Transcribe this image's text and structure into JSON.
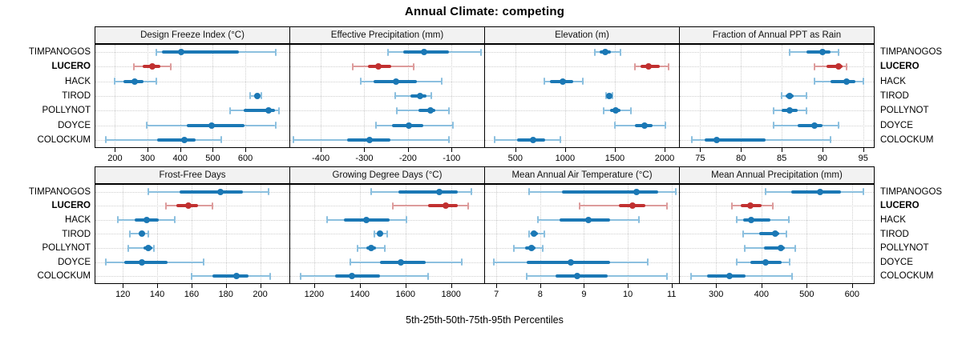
{
  "title": "Annual Climate: competing",
  "xlabel": "5th-25th-50th-75th-95th Percentiles",
  "sites": [
    "TIMPANOGOS",
    "LUCERO",
    "HACK",
    "TIROD",
    "POLLYNOT",
    "DOYCE",
    "COLOCKUM"
  ],
  "highlight_site": "LUCERO",
  "colors": {
    "series": "#1b78b5",
    "series_light": "#8cc0df",
    "highlight": "#c13030",
    "highlight_light": "#dd9c9c",
    "grid": "#cfcfcf",
    "header_bg": "#f2f2f2",
    "border": "#000000"
  },
  "chart_data": [
    {
      "type": "dotplot-interval",
      "title": "Design Freeze Index (°C)",
      "xlim": [
        140,
        735
      ],
      "ticks": [
        200,
        300,
        400,
        500,
        600
      ],
      "percentiles": [
        "5th",
        "25th",
        "50th",
        "75th",
        "95th"
      ],
      "series": [
        {
          "site": "TIMPANOGOS",
          "values": [
            328,
            344,
            402,
            580,
            692
          ]
        },
        {
          "site": "LUCERO",
          "values": [
            258,
            284,
            315,
            340,
            372
          ]
        },
        {
          "site": "HACK",
          "values": [
            200,
            225,
            260,
            287,
            328
          ]
        },
        {
          "site": "TIROD",
          "values": [
            615,
            628,
            636,
            643,
            650
          ]
        },
        {
          "site": "POLLYNOT",
          "values": [
            552,
            594,
            672,
            692,
            704
          ]
        },
        {
          "site": "DOYCE",
          "values": [
            297,
            420,
            497,
            597,
            692
          ]
        },
        {
          "site": "COLOCKUM",
          "values": [
            172,
            330,
            412,
            447,
            525
          ]
        }
      ]
    },
    {
      "type": "dotplot-interval",
      "title": "Effective Precipitation (mm)",
      "xlim": [
        -470,
        -25
      ],
      "ticks": [
        -400,
        -300,
        -200,
        -100
      ],
      "percentiles": [
        "5th",
        "25th",
        "50th",
        "75th",
        "95th"
      ],
      "series": [
        {
          "site": "TIMPANOGOS",
          "values": [
            -245,
            -210,
            -162,
            -105,
            -32
          ]
        },
        {
          "site": "LUCERO",
          "values": [
            -327,
            -292,
            -268,
            -238,
            -186
          ]
        },
        {
          "site": "HACK",
          "values": [
            -308,
            -278,
            -228,
            -180,
            -122
          ]
        },
        {
          "site": "TIROD",
          "values": [
            -230,
            -195,
            -172,
            -158,
            -147
          ]
        },
        {
          "site": "POLLYNOT",
          "values": [
            -226,
            -176,
            -149,
            -138,
            -106
          ]
        },
        {
          "site": "DOYCE",
          "values": [
            -274,
            -236,
            -198,
            -164,
            -97
          ]
        },
        {
          "site": "COLOCKUM",
          "values": [
            -463,
            -340,
            -288,
            -240,
            -106
          ]
        }
      ]
    },
    {
      "type": "dotplot-interval",
      "title": "Elevation (m)",
      "xlim": [
        195,
        2145
      ],
      "ticks": [
        500,
        1000,
        1500,
        2000
      ],
      "percentiles": [
        "5th",
        "25th",
        "50th",
        "75th",
        "95th"
      ],
      "series": [
        {
          "site": "TIMPANOGOS",
          "values": [
            1300,
            1350,
            1400,
            1460,
            1560
          ]
        },
        {
          "site": "LUCERO",
          "values": [
            1700,
            1760,
            1840,
            1950,
            2040
          ]
        },
        {
          "site": "HACK",
          "values": [
            790,
            850,
            980,
            1080,
            1180
          ]
        },
        {
          "site": "TIROD",
          "values": [
            1410,
            1430,
            1445,
            1460,
            1480
          ]
        },
        {
          "site": "POLLYNOT",
          "values": [
            1390,
            1450,
            1505,
            1560,
            1660
          ]
        },
        {
          "site": "DOYCE",
          "values": [
            1500,
            1700,
            1800,
            1880,
            2010
          ]
        },
        {
          "site": "COLOCKUM",
          "values": [
            290,
            520,
            680,
            800,
            950
          ]
        }
      ]
    },
    {
      "type": "dotplot-interval",
      "title": "Fraction of Annual PPT as Rain",
      "xlim": [
        72.5,
        96.3
      ],
      "ticks": [
        75,
        80,
        85,
        90,
        95
      ],
      "percentiles": [
        "5th",
        "25th",
        "50th",
        "75th",
        "95th"
      ],
      "series": [
        {
          "site": "TIMPANOGOS",
          "values": [
            86,
            88,
            90,
            91,
            92
          ]
        },
        {
          "site": "LUCERO",
          "values": [
            89,
            90.5,
            92,
            92.5,
            93
          ]
        },
        {
          "site": "HACK",
          "values": [
            89,
            91,
            93,
            94,
            95
          ]
        },
        {
          "site": "TIROD",
          "values": [
            85,
            85.5,
            86,
            86.5,
            88
          ]
        },
        {
          "site": "POLLYNOT",
          "values": [
            84,
            85,
            86,
            87,
            88
          ]
        },
        {
          "site": "DOYCE",
          "values": [
            84,
            87,
            89,
            90,
            92
          ]
        },
        {
          "site": "COLOCKUM",
          "values": [
            74,
            75.5,
            77,
            83,
            91
          ]
        }
      ]
    },
    {
      "type": "dotplot-interval",
      "title": "Frost-Free Days",
      "xlim": [
        104,
        217
      ],
      "ticks": [
        120,
        140,
        160,
        180,
        200
      ],
      "percentiles": [
        "5th",
        "25th",
        "50th",
        "75th",
        "95th"
      ],
      "series": [
        {
          "site": "TIMPANOGOS",
          "values": [
            135,
            153,
            177,
            190,
            205
          ]
        },
        {
          "site": "LUCERO",
          "values": [
            145,
            151,
            158,
            164,
            172
          ]
        },
        {
          "site": "HACK",
          "values": [
            117,
            127,
            134,
            141,
            150
          ]
        },
        {
          "site": "TIROD",
          "values": [
            124,
            129,
            131,
            133,
            135
          ]
        },
        {
          "site": "POLLYNOT",
          "values": [
            123,
            132,
            135,
            137,
            138
          ]
        },
        {
          "site": "DOYCE",
          "values": [
            110,
            121,
            131,
            146,
            167
          ]
        },
        {
          "site": "COLOCKUM",
          "values": [
            160,
            172,
            186,
            193,
            206
          ]
        }
      ]
    },
    {
      "type": "dotplot-interval",
      "title": "Growing Degree Days (°C)",
      "xlim": [
        1095,
        1945
      ],
      "ticks": [
        1200,
        1400,
        1600,
        1800
      ],
      "percentiles": [
        "5th",
        "25th",
        "50th",
        "75th",
        "95th"
      ],
      "series": [
        {
          "site": "TIMPANOGOS",
          "values": [
            1450,
            1570,
            1750,
            1830,
            1890
          ]
        },
        {
          "site": "LUCERO",
          "values": [
            1545,
            1700,
            1775,
            1830,
            1875
          ]
        },
        {
          "site": "HACK",
          "values": [
            1255,
            1330,
            1430,
            1530,
            1605
          ]
        },
        {
          "site": "TIROD",
          "values": [
            1465,
            1480,
            1490,
            1500,
            1520
          ]
        },
        {
          "site": "POLLYNOT",
          "values": [
            1390,
            1430,
            1450,
            1470,
            1510
          ]
        },
        {
          "site": "DOYCE",
          "values": [
            1360,
            1490,
            1580,
            1690,
            1845
          ]
        },
        {
          "site": "COLOCKUM",
          "values": [
            1140,
            1290,
            1365,
            1490,
            1700
          ]
        }
      ]
    },
    {
      "type": "dotplot-interval",
      "title": "Mean Annual Air Temperature (°C)",
      "xlim": [
        6.74,
        11.17
      ],
      "ticks": [
        7,
        8,
        9,
        10,
        11
      ],
      "percentiles": [
        "5th",
        "25th",
        "50th",
        "75th",
        "95th"
      ],
      "series": [
        {
          "site": "TIMPANOGOS",
          "values": [
            7.75,
            8.5,
            10.2,
            10.7,
            11.1
          ]
        },
        {
          "site": "LUCERO",
          "values": [
            8.9,
            9.8,
            10.1,
            10.4,
            10.9
          ]
        },
        {
          "site": "HACK",
          "values": [
            7.95,
            8.45,
            9.1,
            9.6,
            10.25
          ]
        },
        {
          "site": "TIROD",
          "values": [
            7.75,
            7.8,
            7.85,
            7.95,
            8.1
          ]
        },
        {
          "site": "POLLYNOT",
          "values": [
            7.4,
            7.65,
            7.8,
            7.9,
            8.05
          ]
        },
        {
          "site": "DOYCE",
          "values": [
            6.95,
            7.7,
            8.7,
            9.6,
            10.45
          ]
        },
        {
          "site": "COLOCKUM",
          "values": [
            7.7,
            8.35,
            8.85,
            9.55,
            10.9
          ]
        }
      ]
    },
    {
      "type": "dotplot-interval",
      "title": "Mean Annual Precipitation (mm)",
      "xlim": [
        220,
        648
      ],
      "ticks": [
        300,
        400,
        500,
        600
      ],
      "percentiles": [
        "5th",
        "25th",
        "50th",
        "75th",
        "95th"
      ],
      "series": [
        {
          "site": "TIMPANOGOS",
          "values": [
            410,
            465,
            530,
            575,
            625
          ]
        },
        {
          "site": "LUCERO",
          "values": [
            335,
            355,
            375,
            400,
            425
          ]
        },
        {
          "site": "HACK",
          "values": [
            345,
            360,
            378,
            420,
            460
          ]
        },
        {
          "site": "TIROD",
          "values": [
            360,
            395,
            430,
            440,
            455
          ]
        },
        {
          "site": "POLLYNOT",
          "values": [
            363,
            405,
            442,
            452,
            475
          ]
        },
        {
          "site": "DOYCE",
          "values": [
            345,
            375,
            410,
            445,
            462
          ]
        },
        {
          "site": "COLOCKUM",
          "values": [
            245,
            280,
            330,
            365,
            467
          ]
        }
      ]
    }
  ]
}
